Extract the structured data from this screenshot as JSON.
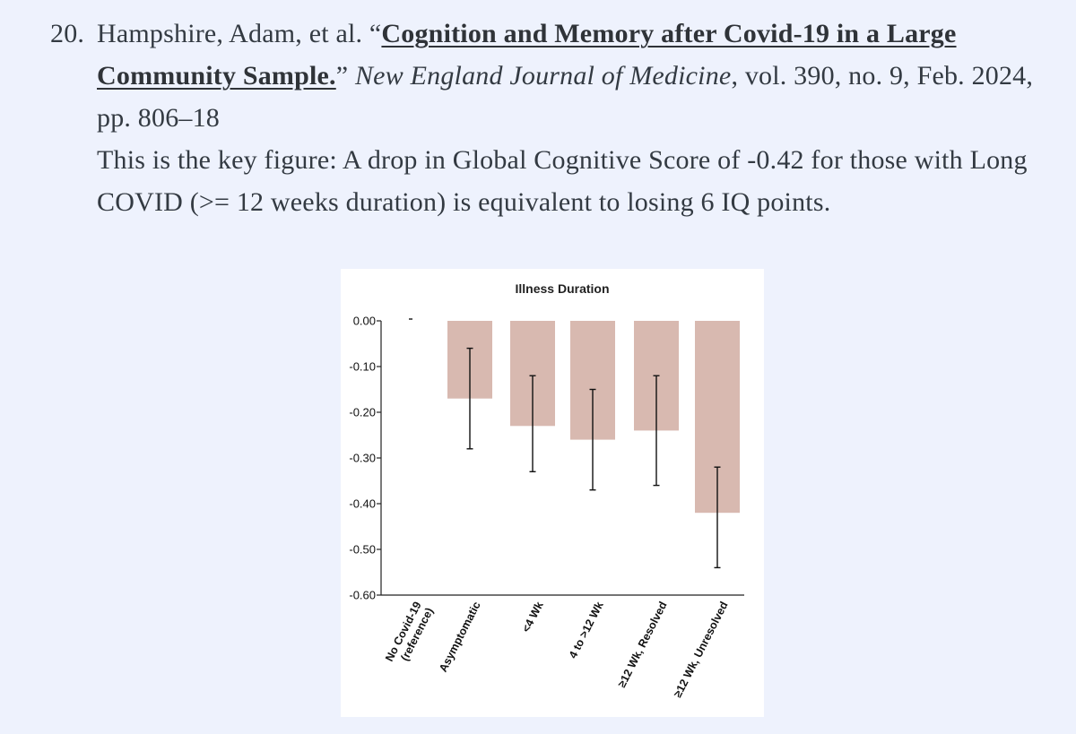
{
  "citation": {
    "number": "20.",
    "authors": "Hampshire, Adam, et al. “",
    "title_link": "Cognition and Memory after Covid-19 in a Large Community Sample.",
    "after_title": "” ",
    "journal": "New England Journal of Medicine",
    "details": ", vol. 390, no. 9, Feb. 2024, pp. 806–18",
    "note": "This is the key figure: A drop in Global Cognitive Score of -0.42 for those with Long COVID (>= 12 weeks duration) is equivalent to losing 6 IQ points."
  },
  "chart_data": {
    "type": "bar",
    "title": "Illness Duration",
    "categories": [
      "No Covid-19 (reference)",
      "Asymptomatic",
      "<4 Wk",
      "4 to >12 Wk",
      "≥12 Wk, Resolved",
      "≥12 Wk, Unresolved"
    ],
    "category_lines": [
      [
        "No Covid-19",
        "(reference)"
      ],
      [
        "Asymptomatic"
      ],
      [
        "<4 Wk"
      ],
      [
        "4 to >12 Wk"
      ],
      [
        "≥12 Wk, Resolved"
      ],
      [
        "≥12 Wk, Unresolved"
      ]
    ],
    "values": [
      0.0,
      -0.17,
      -0.23,
      -0.26,
      -0.24,
      -0.42
    ],
    "error_low": [
      0.0,
      -0.28,
      -0.33,
      -0.37,
      -0.36,
      -0.54
    ],
    "error_high": [
      0.0,
      -0.06,
      -0.12,
      -0.15,
      -0.12,
      -0.32
    ],
    "ylim": [
      -0.6,
      0.0
    ],
    "yticks": [
      "0.00",
      "-0.10",
      "-0.20",
      "-0.30",
      "-0.40",
      "-0.50",
      "-0.60"
    ],
    "ytick_values": [
      0.0,
      -0.1,
      -0.2,
      -0.3,
      -0.4,
      -0.5,
      -0.6
    ],
    "xlabel": "",
    "ylabel": "",
    "bar_color": "#d8b9b0",
    "grid": false
  }
}
